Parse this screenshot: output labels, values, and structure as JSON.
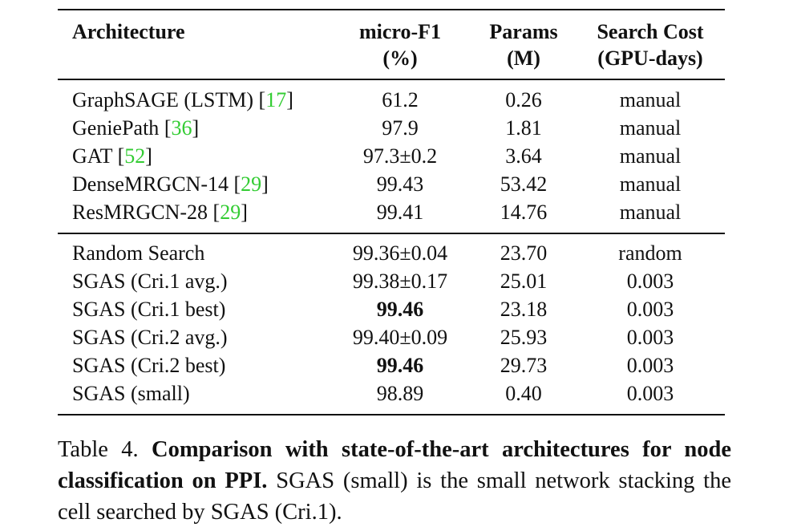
{
  "table": {
    "header": [
      [
        "Architecture"
      ],
      [
        "micro-F1",
        "(%)"
      ],
      [
        "Params",
        "(M)"
      ],
      [
        "Search Cost",
        "(GPU-days)"
      ]
    ],
    "groups": [
      [
        [
          {
            "name": "GraphSAGE (LSTM)",
            "ref": "17"
          },
          {
            "text": "61.2"
          },
          {
            "text": "0.26"
          },
          {
            "text": "manual"
          }
        ],
        [
          {
            "name": "GeniePath",
            "ref": "36"
          },
          {
            "text": "97.9"
          },
          {
            "text": "1.81"
          },
          {
            "text": "manual"
          }
        ],
        [
          {
            "name": "GAT",
            "ref": "52"
          },
          {
            "text": "97.3±0.2"
          },
          {
            "text": "3.64"
          },
          {
            "text": "manual"
          }
        ],
        [
          {
            "name": "DenseMRGCN-14",
            "ref": "29"
          },
          {
            "text": "99.43"
          },
          {
            "text": "53.42"
          },
          {
            "text": "manual"
          }
        ],
        [
          {
            "name": "ResMRGCN-28",
            "ref": "29"
          },
          {
            "text": "99.41"
          },
          {
            "text": "14.76"
          },
          {
            "text": "manual"
          }
        ]
      ],
      [
        [
          {
            "name": "Random Search"
          },
          {
            "text": "99.36±0.04"
          },
          {
            "text": "23.70"
          },
          {
            "text": "random"
          }
        ],
        [
          {
            "name": "SGAS (Cri.1 avg.)"
          },
          {
            "text": "99.38±0.17"
          },
          {
            "text": "25.01"
          },
          {
            "text": "0.003"
          }
        ],
        [
          {
            "name": "SGAS (Cri.1 best)"
          },
          {
            "text": "99.46",
            "bold": true
          },
          {
            "text": "23.18"
          },
          {
            "text": "0.003"
          }
        ],
        [
          {
            "name": "SGAS (Cri.2 avg.)"
          },
          {
            "text": "99.40±0.09"
          },
          {
            "text": "25.93"
          },
          {
            "text": "0.003"
          }
        ],
        [
          {
            "name": "SGAS (Cri.2 best)"
          },
          {
            "text": "99.46",
            "bold": true
          },
          {
            "text": "29.73"
          },
          {
            "text": "0.003"
          }
        ],
        [
          {
            "name": "SGAS (small)"
          },
          {
            "text": "98.89"
          },
          {
            "text": "0.40"
          },
          {
            "text": "0.003"
          }
        ]
      ]
    ]
  },
  "caption": {
    "label": "Table 4.",
    "title": "Comparison with state-of-the-art architectures for node classification on PPI.",
    "text": "SGAS (small) is the small network stacking the cell searched by SGAS (Cri.1)."
  }
}
